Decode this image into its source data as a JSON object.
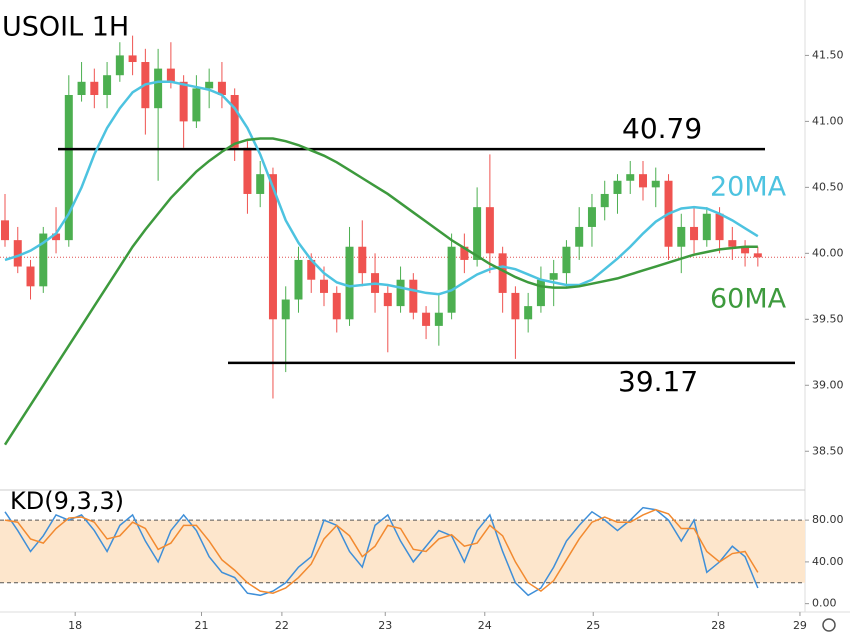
{
  "chart_data": [
    {
      "type": "candlestick",
      "title": "USOIL 1H",
      "open": [
        40.25,
        40.1,
        39.9,
        39.75,
        40.15,
        40.1,
        41.2,
        41.3,
        41.2,
        41.35,
        41.5,
        41.45,
        41.1,
        41.4,
        41.3,
        41.0,
        41.25,
        41.3,
        41.2,
        40.8,
        40.45,
        40.6,
        39.5,
        39.65,
        39.95,
        39.8,
        39.7,
        39.5,
        40.05,
        39.85,
        39.7,
        39.6,
        39.8,
        39.55,
        39.45,
        39.55,
        40.05,
        39.95,
        40.35,
        40.0,
        39.7,
        39.5,
        39.6,
        39.8,
        39.85,
        40.05,
        40.2,
        40.35,
        40.45,
        40.55,
        40.6,
        40.5,
        40.55,
        40.05,
        40.2,
        40.1,
        40.3,
        40.1,
        40.05,
        40.0
      ],
      "high": [
        40.45,
        40.2,
        39.95,
        40.2,
        40.35,
        41.35,
        41.45,
        41.4,
        41.45,
        41.6,
        41.65,
        41.55,
        41.55,
        41.6,
        41.35,
        41.35,
        41.4,
        41.45,
        41.25,
        40.85,
        40.7,
        40.65,
        39.75,
        40.05,
        40.0,
        39.9,
        39.75,
        40.2,
        40.25,
        40.0,
        39.75,
        39.9,
        39.85,
        39.6,
        39.7,
        40.15,
        40.15,
        40.5,
        40.75,
        40.05,
        39.75,
        39.7,
        39.9,
        39.95,
        40.1,
        40.35,
        40.45,
        40.55,
        40.6,
        40.7,
        40.7,
        40.65,
        40.6,
        40.3,
        40.35,
        40.35,
        40.35,
        40.2,
        40.1,
        40.05
      ],
      "low": [
        40.05,
        39.85,
        39.65,
        39.7,
        40.0,
        40.05,
        41.15,
        41.1,
        41.1,
        41.3,
        41.35,
        40.9,
        40.55,
        41.25,
        40.8,
        40.95,
        41.1,
        41.1,
        40.7,
        40.3,
        40.35,
        38.9,
        39.1,
        39.55,
        39.7,
        39.6,
        39.4,
        39.45,
        39.75,
        39.55,
        39.25,
        39.55,
        39.5,
        39.35,
        39.3,
        39.5,
        39.85,
        39.9,
        39.85,
        39.55,
        39.2,
        39.4,
        39.55,
        39.6,
        39.75,
        39.95,
        40.05,
        40.25,
        40.3,
        40.45,
        40.4,
        40.35,
        39.95,
        39.85,
        40.0,
        40.05,
        40.0,
        39.95,
        39.9,
        39.9
      ],
      "close": [
        40.1,
        39.9,
        39.75,
        40.15,
        40.1,
        41.2,
        41.3,
        41.2,
        41.35,
        41.5,
        41.45,
        41.1,
        41.4,
        41.3,
        41.0,
        41.25,
        41.3,
        41.2,
        40.8,
        40.45,
        40.6,
        39.5,
        39.65,
        39.95,
        39.8,
        39.7,
        39.5,
        40.05,
        39.85,
        39.7,
        39.6,
        39.8,
        39.55,
        39.45,
        39.55,
        40.05,
        39.95,
        40.35,
        40.0,
        39.7,
        39.5,
        39.6,
        39.8,
        39.85,
        40.05,
        40.2,
        40.35,
        40.45,
        40.55,
        40.6,
        40.5,
        40.55,
        40.05,
        40.2,
        40.1,
        40.3,
        40.1,
        40.05,
        40.0,
        39.97
      ],
      "up_color": "#4caf50",
      "down_color": "#ef5350",
      "series": [
        {
          "name": "20MA",
          "color": "#4dc3e0",
          "values": [
            39.95,
            39.98,
            40.02,
            40.08,
            40.15,
            40.3,
            40.5,
            40.75,
            40.95,
            41.1,
            41.22,
            41.28,
            41.3,
            41.3,
            41.28,
            41.26,
            41.24,
            41.2,
            41.1,
            40.95,
            40.75,
            40.5,
            40.25,
            40.08,
            39.95,
            39.85,
            39.78,
            39.75,
            39.76,
            39.77,
            39.76,
            39.74,
            39.72,
            39.7,
            39.69,
            39.72,
            39.78,
            39.84,
            39.88,
            39.9,
            39.88,
            39.84,
            39.8,
            39.78,
            39.76,
            39.76,
            39.8,
            39.88,
            39.96,
            40.05,
            40.15,
            40.24,
            40.3,
            40.34,
            40.35,
            40.34,
            40.3,
            40.25,
            40.19,
            40.13
          ]
        },
        {
          "name": "60MA",
          "color": "#3d9a3d",
          "values": [
            38.55,
            38.7,
            38.85,
            39.0,
            39.15,
            39.3,
            39.45,
            39.6,
            39.75,
            39.9,
            40.05,
            40.18,
            40.3,
            40.42,
            40.52,
            40.62,
            40.7,
            40.77,
            40.83,
            40.86,
            40.87,
            40.87,
            40.85,
            40.82,
            40.78,
            40.74,
            40.69,
            40.63,
            40.57,
            40.51,
            40.45,
            40.38,
            40.31,
            40.24,
            40.17,
            40.1,
            40.04,
            39.98,
            39.92,
            39.87,
            39.82,
            39.78,
            39.75,
            39.74,
            39.74,
            39.75,
            39.77,
            39.79,
            39.81,
            39.84,
            39.87,
            39.9,
            39.93,
            39.96,
            39.99,
            40.01,
            40.03,
            40.04,
            40.05,
            40.05
          ]
        }
      ],
      "levels": [
        40.79,
        39.17
      ],
      "price_line": 39.97,
      "price_line_color": "#e05050",
      "ylim": [
        38.32,
        41.92
      ],
      "yticks": [
        {
          "value": 41.5,
          "label": "41.50"
        },
        {
          "value": 41,
          "label": "41.00"
        },
        {
          "value": 40.5,
          "label": "40.50"
        },
        {
          "value": 40,
          "label": "40.00"
        },
        {
          "value": 39.5,
          "label": "39.50"
        },
        {
          "value": 39,
          "label": "39.00"
        },
        {
          "value": 38.5,
          "label": "38.50"
        }
      ],
      "xticks": [
        {
          "value": 5.5,
          "label": "18"
        },
        {
          "value": 15.4,
          "label": "21"
        },
        {
          "value": 21.7,
          "label": "22"
        },
        {
          "value": 29.8,
          "label": "23"
        },
        {
          "value": 37.6,
          "label": "24"
        },
        {
          "value": 46.1,
          "label": "25"
        },
        {
          "value": 55.9,
          "label": "28"
        },
        {
          "value": 62.3,
          "label": "29"
        }
      ]
    },
    {
      "type": "line",
      "title": "KD(9,3,3)",
      "series": [
        {
          "color": "#3f8fd8",
          "values": [
            88,
            70,
            50,
            65,
            85,
            80,
            85,
            70,
            50,
            75,
            85,
            60,
            40,
            70,
            85,
            70,
            45,
            30,
            25,
            10,
            8,
            12,
            20,
            35,
            45,
            80,
            75,
            50,
            35,
            75,
            85,
            60,
            40,
            55,
            70,
            65,
            40,
            70,
            85,
            50,
            20,
            8,
            15,
            35,
            60,
            75,
            88,
            80,
            70,
            80,
            92,
            90,
            80,
            60,
            80,
            30,
            40,
            55,
            45,
            15
          ]
        },
        {
          "color": "#f28a30",
          "values": [
            80,
            78,
            62,
            58,
            72,
            82,
            83,
            78,
            62,
            65,
            78,
            72,
            52,
            58,
            75,
            75,
            60,
            42,
            32,
            20,
            12,
            10,
            15,
            25,
            38,
            62,
            75,
            65,
            45,
            55,
            75,
            72,
            52,
            50,
            62,
            66,
            55,
            58,
            75,
            65,
            40,
            20,
            12,
            22,
            42,
            62,
            78,
            83,
            78,
            78,
            85,
            90,
            86,
            72,
            72,
            50,
            40,
            48,
            50,
            30
          ]
        }
      ],
      "band": [
        20,
        80
      ],
      "band_color": "#fde6cc",
      "ylim": [
        -8,
        106
      ],
      "yticks": [
        {
          "value": 80,
          "label": "80.00"
        },
        {
          "value": 40,
          "label": "40.00"
        },
        {
          "value": 0,
          "label": "0.00"
        }
      ]
    }
  ]
}
